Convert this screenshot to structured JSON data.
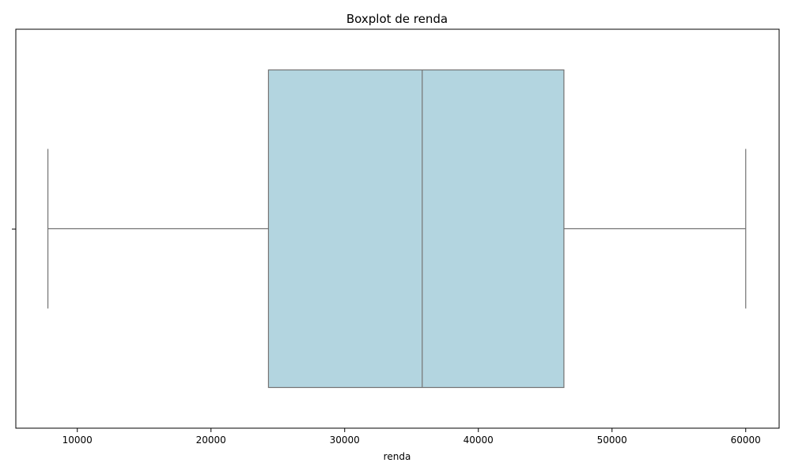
{
  "chart_data": {
    "type": "boxplot",
    "title": "Boxplot de renda",
    "xlabel": "renda",
    "ylabel": "",
    "orientation": "horizontal",
    "xlim": [
      5400,
      62500
    ],
    "xticks": [
      10000,
      20000,
      30000,
      40000,
      50000,
      60000
    ],
    "grid": false,
    "box": {
      "min": 7800,
      "q1": 24300,
      "median": 35800,
      "q3": 46400,
      "max": 60000
    },
    "colors": {
      "box_fill": "#b3d5e0",
      "line": "#737373",
      "axis": "#000000"
    }
  }
}
